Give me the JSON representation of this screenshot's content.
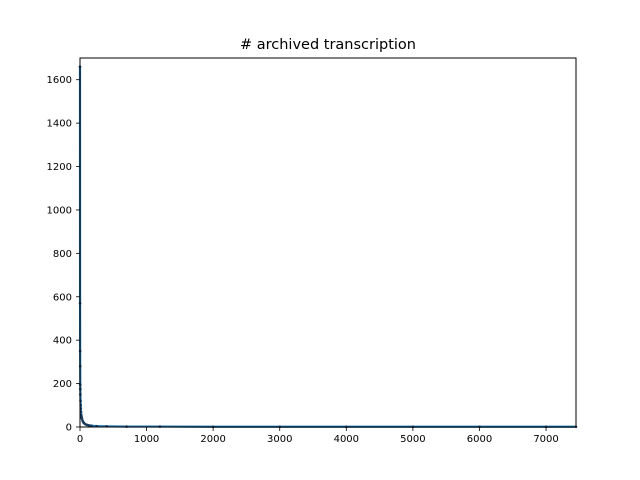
{
  "chart_data": {
    "type": "line",
    "title": "# archived transcription",
    "xlabel": "",
    "ylabel": "",
    "xlim": [
      0,
      7450
    ],
    "ylim": [
      0,
      1700
    ],
    "xticks": [
      0,
      1000,
      2000,
      3000,
      4000,
      5000,
      6000,
      7000
    ],
    "xtick_labels": [
      "0",
      "1000",
      "2000",
      "3000",
      "4000",
      "5000",
      "6000",
      "7000"
    ],
    "yticks": [
      0,
      200,
      400,
      600,
      800,
      1000,
      1200,
      1400,
      1600
    ],
    "ytick_labels": [
      "0",
      "200",
      "400",
      "600",
      "800",
      "1000",
      "1200",
      "1400",
      "1600"
    ],
    "grid": false,
    "legend": "none",
    "series": [
      {
        "color": "#1f77b4",
        "marker_color": "#1a3a5c",
        "x": [
          0,
          1,
          2,
          3,
          4,
          5,
          6,
          8,
          10,
          12,
          15,
          20,
          25,
          30,
          40,
          50,
          60,
          80,
          100,
          130,
          170,
          250,
          400,
          700,
          1200,
          2000,
          3000,
          4000,
          5000,
          6000,
          7000,
          7450
        ],
        "y": [
          1660,
          570,
          350,
          280,
          195,
          175,
          150,
          120,
          100,
          85,
          70,
          55,
          45,
          38,
          28,
          22,
          18,
          13,
          10,
          8,
          6,
          4,
          3,
          2,
          2,
          1,
          1,
          1,
          1,
          1,
          1,
          1
        ]
      }
    ]
  }
}
